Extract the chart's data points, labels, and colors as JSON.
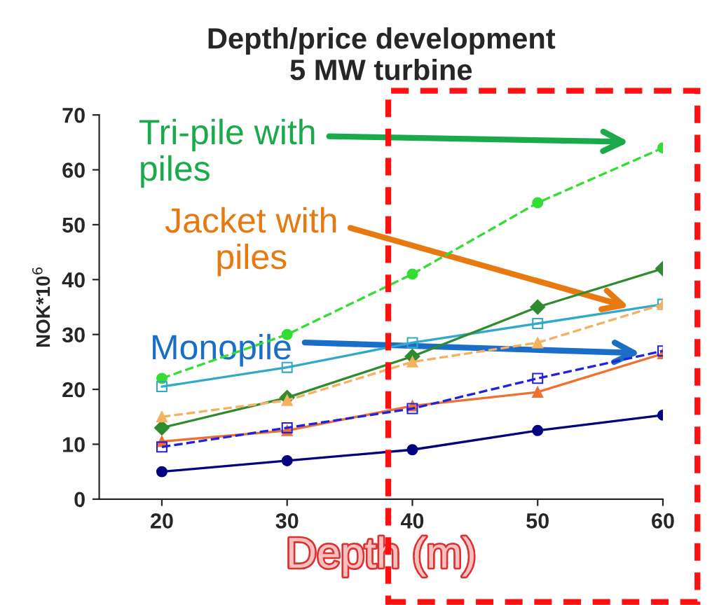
{
  "chart_data": {
    "type": "line",
    "title": "Depth/price development\n5 MW turbine",
    "xlabel": "Depth (m)",
    "ylabel": "NOK*10$^{6}$",
    "x": [
      20,
      30,
      40,
      50,
      60
    ],
    "xlim": [
      15,
      60
    ],
    "xticks": [
      20,
      30,
      40,
      50,
      60
    ],
    "ylim": [
      0,
      70
    ],
    "yticks": [
      0,
      10,
      20,
      30,
      40,
      50,
      60,
      70
    ],
    "grid": false,
    "legend": false,
    "series": [
      {
        "color": "#33dd33",
        "marker": "circle",
        "line_style": "dashed",
        "values": [
          22,
          30,
          41,
          54,
          64
        ]
      },
      {
        "color": "#33a8c8",
        "marker": "square",
        "line_style": "solid",
        "values": [
          20.5,
          24,
          28.5,
          32,
          35.5
        ]
      },
      {
        "color": "#2e8b2e",
        "marker": "diamond",
        "line_style": "solid",
        "values": [
          13,
          18.5,
          26,
          35,
          42
        ]
      },
      {
        "color": "#f5b060",
        "marker": "triangle",
        "line_style": "dashed",
        "values": [
          15,
          18,
          25,
          28.5,
          35.5
        ]
      },
      {
        "color": "#f07030",
        "marker": "triangle",
        "line_style": "solid",
        "values": [
          10.5,
          12.5,
          17,
          19.5,
          26.5
        ]
      },
      {
        "color": "#2222dd",
        "marker": "square",
        "line_style": "dashed",
        "values": [
          9.5,
          13,
          16.5,
          22,
          27
        ]
      },
      {
        "color": "#000080",
        "marker": "circle",
        "line_style": "solid",
        "values": [
          5,
          7,
          9,
          12.5,
          15.3
        ]
      }
    ],
    "annotations": [
      "Tri-pile with\npiles",
      "Jacket with\npiles",
      "Monopile"
    ]
  }
}
